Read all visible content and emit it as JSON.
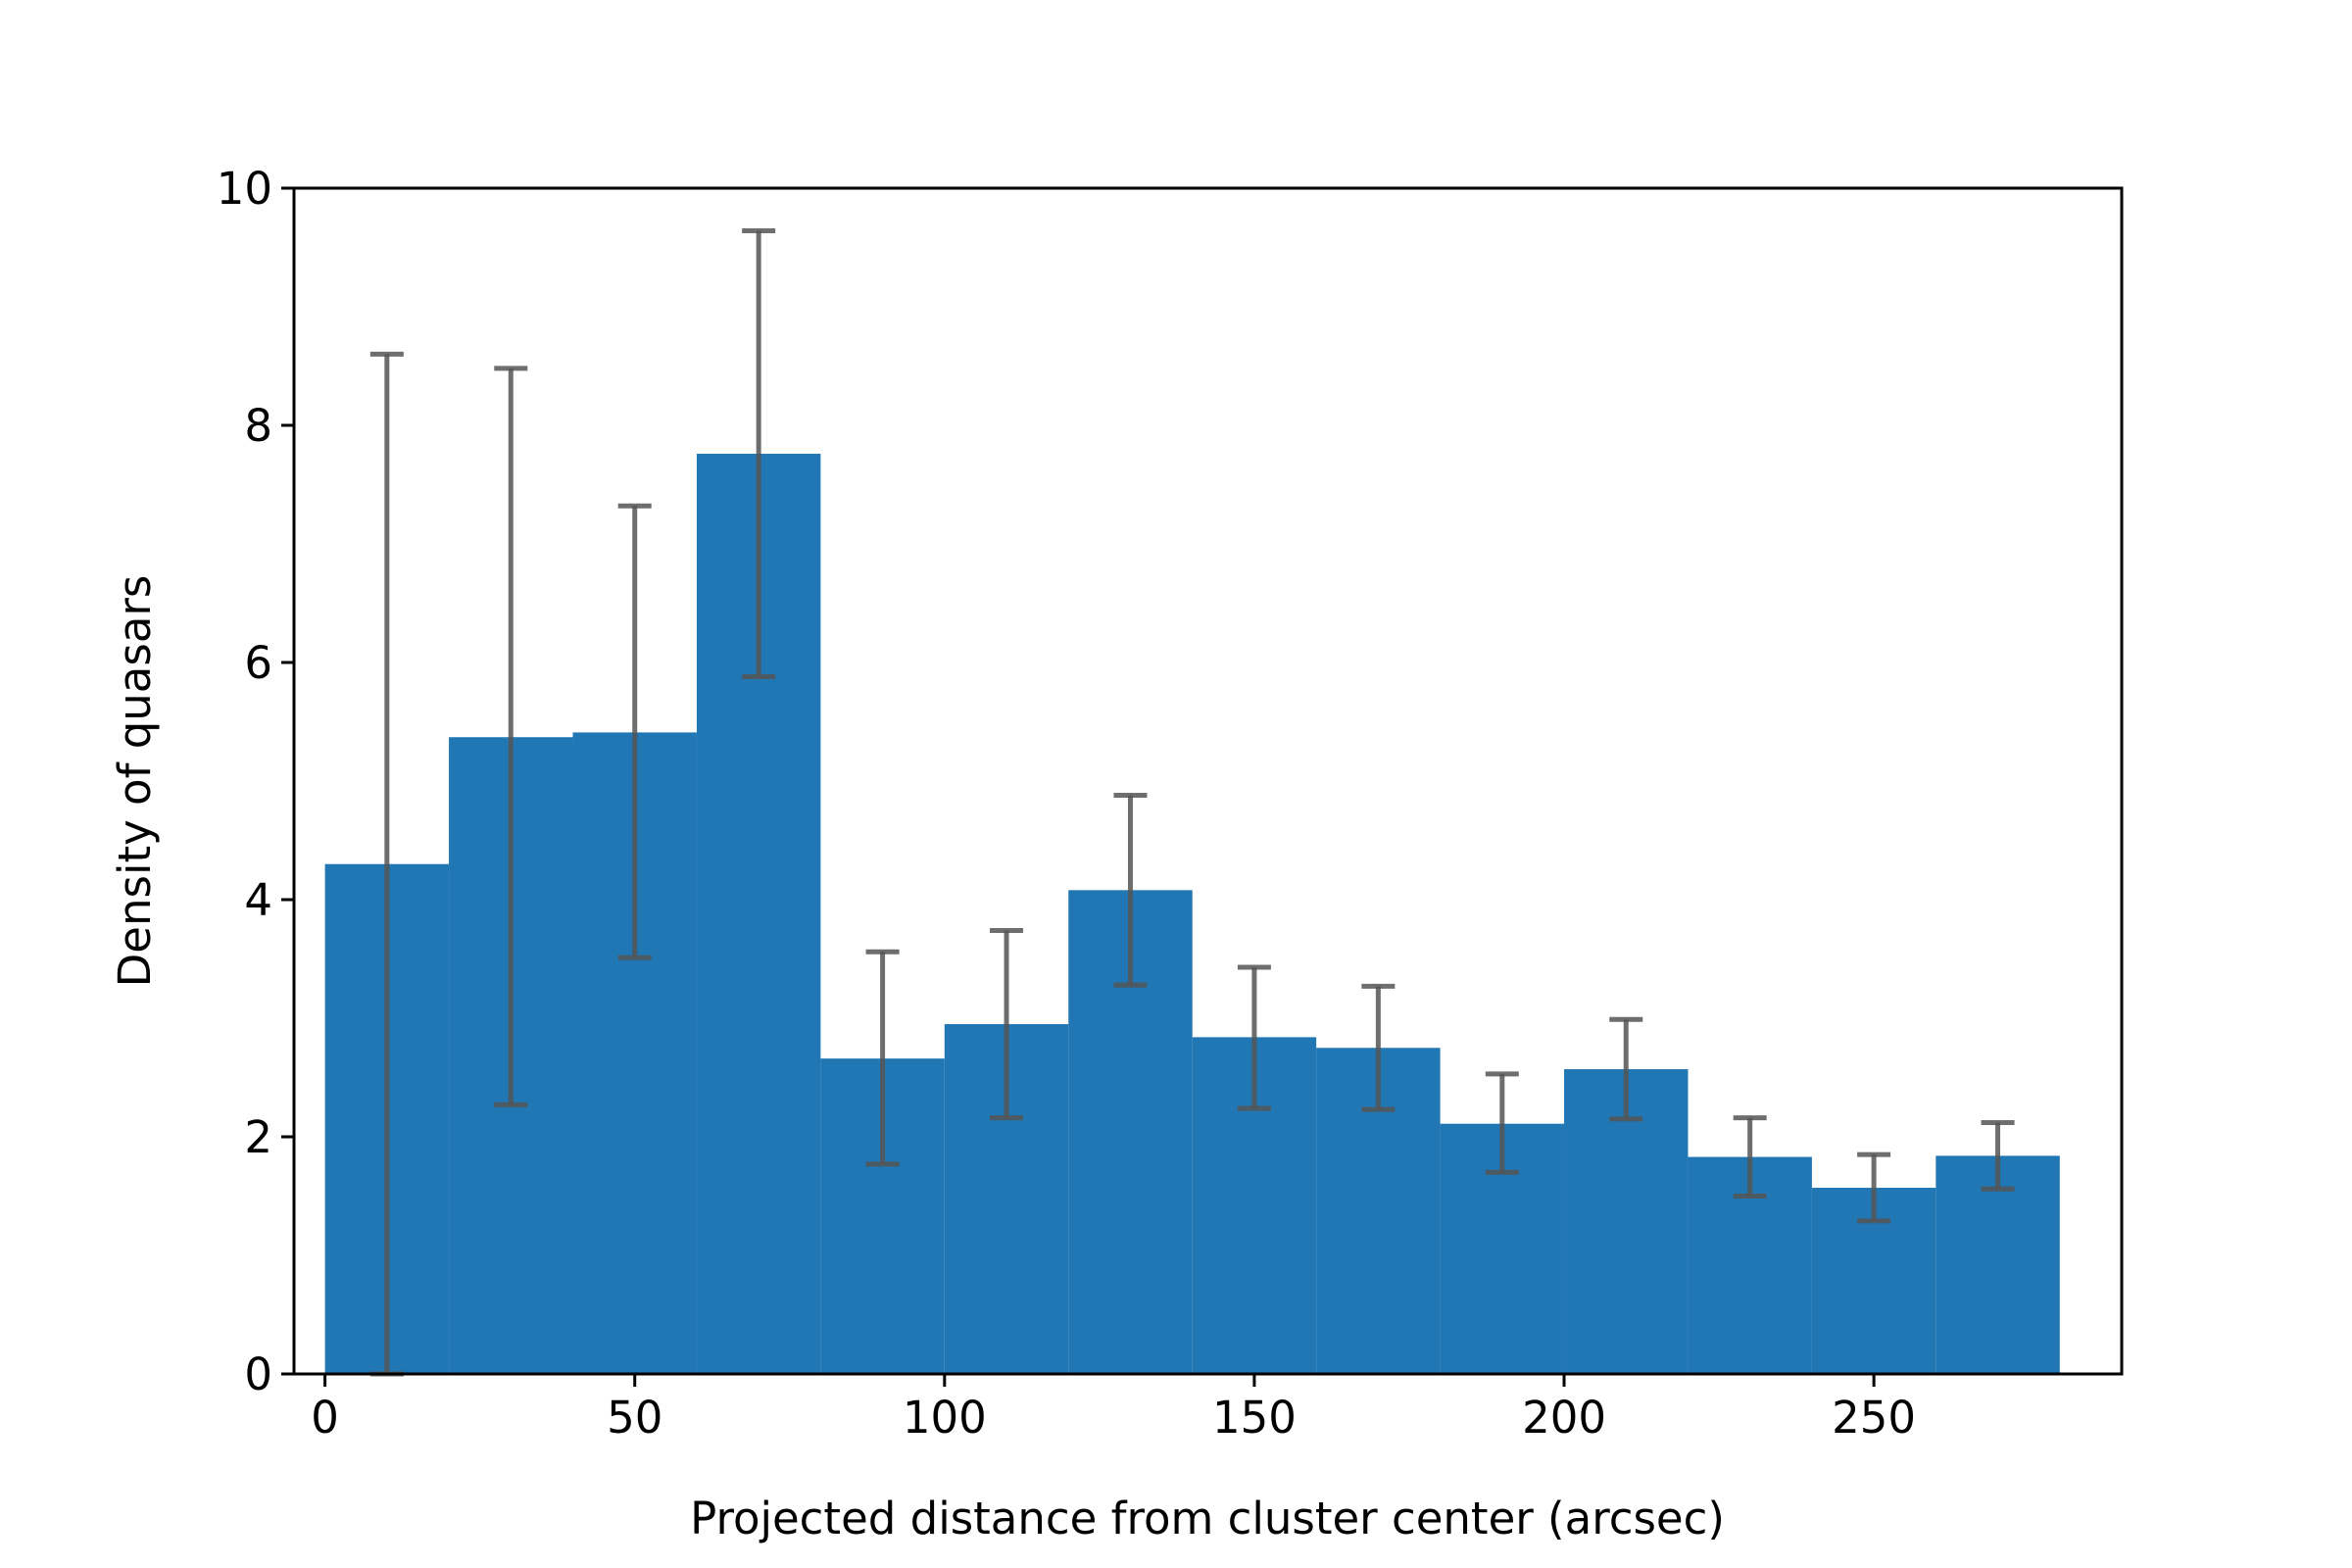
{
  "chart_data": {
    "type": "bar",
    "title": "",
    "xlabel": "Projected distance from cluster center (arcsec)",
    "ylabel": "Density of quasars",
    "xlim": [
      -5,
      290
    ],
    "ylim": [
      0,
      10
    ],
    "xticks": [
      0,
      50,
      100,
      150,
      200,
      250
    ],
    "yticks": [
      0,
      2,
      4,
      6,
      8,
      10
    ],
    "xtick_labels": [
      "0",
      "50",
      "100",
      "150",
      "200",
      "250"
    ],
    "ytick_labels": [
      "0",
      "2",
      "4",
      "6",
      "8",
      "10"
    ],
    "bins": [
      {
        "x0": 0,
        "x1": 20,
        "value": 4.3,
        "err_low": 0.0,
        "err_high": 8.6
      },
      {
        "x0": 20,
        "x1": 40,
        "value": 5.37,
        "err_low": 2.27,
        "err_high": 8.48
      },
      {
        "x0": 40,
        "x1": 60,
        "value": 5.41,
        "err_low": 3.51,
        "err_high": 7.32
      },
      {
        "x0": 60,
        "x1": 80,
        "value": 7.76,
        "err_low": 5.88,
        "err_high": 9.64
      },
      {
        "x0": 80,
        "x1": 100,
        "value": 2.66,
        "err_low": 1.77,
        "err_high": 3.56
      },
      {
        "x0": 100,
        "x1": 120,
        "value": 2.95,
        "err_low": 2.16,
        "err_high": 3.74
      },
      {
        "x0": 120,
        "x1": 140,
        "value": 4.08,
        "err_low": 3.28,
        "err_high": 4.88
      },
      {
        "x0": 140,
        "x1": 160,
        "value": 2.84,
        "err_low": 2.24,
        "err_high": 3.43
      },
      {
        "x0": 160,
        "x1": 180,
        "value": 2.75,
        "err_low": 2.23,
        "err_high": 3.27
      },
      {
        "x0": 180,
        "x1": 200,
        "value": 2.11,
        "err_low": 1.7,
        "err_high": 2.53
      },
      {
        "x0": 200,
        "x1": 220,
        "value": 2.57,
        "err_low": 2.15,
        "err_high": 2.99
      },
      {
        "x0": 220,
        "x1": 240,
        "value": 1.83,
        "err_low": 1.5,
        "err_high": 2.16
      },
      {
        "x0": 240,
        "x1": 260,
        "value": 1.57,
        "err_low": 1.29,
        "err_high": 1.85
      },
      {
        "x0": 260,
        "x1": 280,
        "value": 1.84,
        "err_low": 1.56,
        "err_high": 2.12
      }
    ],
    "bar_color": "#2077b4",
    "errorbar_color": "#555555",
    "grid": false,
    "legend": "none"
  }
}
